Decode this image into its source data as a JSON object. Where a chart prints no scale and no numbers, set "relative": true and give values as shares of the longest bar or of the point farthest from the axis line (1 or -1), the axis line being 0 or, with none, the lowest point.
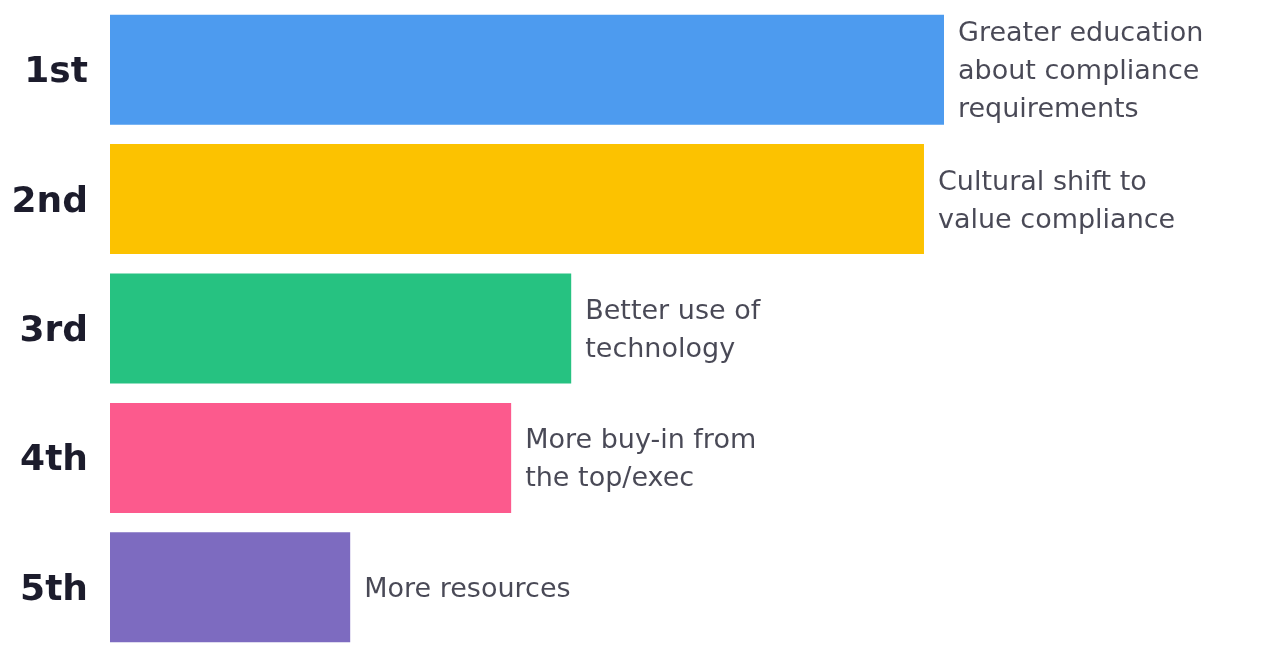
{
  "chart_data": {
    "type": "bar",
    "orientation": "horizontal",
    "relative": true,
    "categories": [
      "1st",
      "2nd",
      "3rd",
      "4th",
      "5th"
    ],
    "values": [
      1,
      0.976,
      0.553,
      0.481,
      0.288
    ],
    "colors": [
      "#4d9bef",
      "#fcc200",
      "#26c281",
      "#fc5a8d",
      "#7d6bc0"
    ],
    "annotations": [
      {
        "text": "Greater education about compliance requirements",
        "x": 1,
        "y": "1st"
      },
      {
        "text": "Cultural shift to value compliance",
        "x": 0.976,
        "y": "2nd"
      },
      {
        "text": "Better use of technology",
        "x": 0.553,
        "y": "3rd"
      },
      {
        "text": "More buy-in from the top/exec",
        "x": 0.481,
        "y": "4th"
      },
      {
        "text": "More resources",
        "x": 0.288,
        "y": "5th"
      }
    ]
  }
}
